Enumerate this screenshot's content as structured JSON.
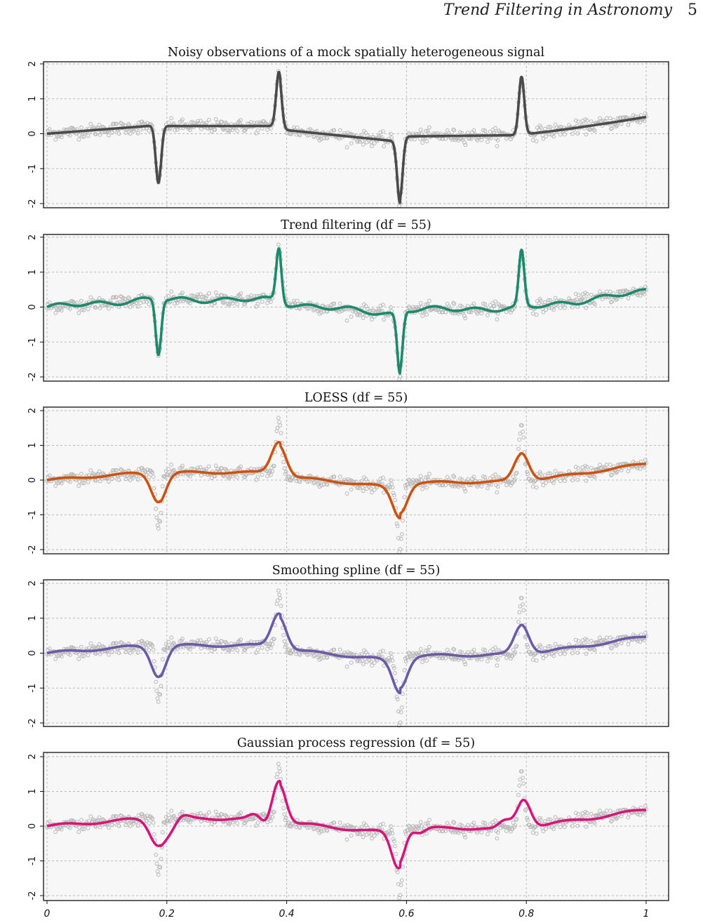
{
  "header": {
    "running_title": "Trend Filtering in Astronomy",
    "page_number": "5"
  },
  "chart_data": [
    {
      "type": "scatter",
      "title": "Noisy observations of a mock spatially heterogeneous signal",
      "xlabel": "",
      "ylabel": "",
      "xlim": [
        0,
        1
      ],
      "ylim": [
        -2,
        2
      ],
      "xticks": [
        "0",
        "0.2",
        "0.4",
        "0.6",
        "0.8",
        "1"
      ],
      "yticks": [
        "-2",
        "-1",
        "0",
        "1",
        "2"
      ],
      "grid": true,
      "series": [
        {
          "kind": "points",
          "color": "#b4b4b4",
          "note": "noisy observations"
        },
        {
          "kind": "line",
          "color": "#4a4a4a",
          "note": "true signal"
        }
      ]
    },
    {
      "type": "line",
      "title": "Trend filtering (df = 55)",
      "xlim": [
        0,
        1
      ],
      "ylim": [
        -2,
        2
      ],
      "grid": true,
      "yticks": [
        "-2",
        "-1",
        "0",
        "1",
        "2"
      ],
      "series": [
        {
          "kind": "line",
          "color": "#1b8a6b"
        }
      ]
    },
    {
      "type": "line",
      "title": "LOESS (df = 55)",
      "xlim": [
        0,
        1
      ],
      "ylim": [
        -2,
        2
      ],
      "grid": true,
      "yticks": [
        "-2",
        "-1",
        "0",
        "1",
        "2"
      ],
      "series": [
        {
          "kind": "line",
          "color": "#cc5210"
        }
      ]
    },
    {
      "type": "line",
      "title": "Smoothing spline (df = 55)",
      "xlim": [
        0,
        1
      ],
      "ylim": [
        -2,
        2
      ],
      "grid": true,
      "yticks": [
        "-2",
        "-1",
        "0",
        "1",
        "2"
      ],
      "series": [
        {
          "kind": "line",
          "color": "#6a5aa8"
        }
      ]
    },
    {
      "type": "line",
      "title": "Gaussian process regression (df = 55)",
      "xlim": [
        0,
        1
      ],
      "ylim": [
        -2,
        2
      ],
      "grid": true,
      "yticks": [
        "-2",
        "-1",
        "0",
        "1",
        "2"
      ],
      "xticks": [
        "0",
        "0.2",
        "0.4",
        "0.6",
        "0.8",
        "1"
      ],
      "series": [
        {
          "kind": "line",
          "color": "#d6157a"
        }
      ]
    }
  ]
}
